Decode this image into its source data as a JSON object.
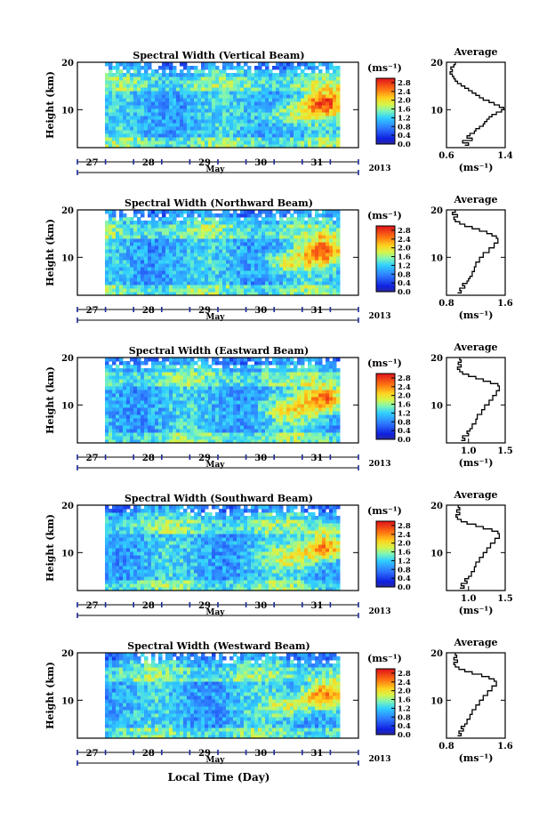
{
  "figure": {
    "xlabel_bottom": "Local Time (Day)"
  },
  "chart_data": [
    {
      "type": "heatmap",
      "title": "Spectral Width (Vertical Beam)",
      "ylabel": "Height (km)",
      "ylim": [
        2,
        20
      ],
      "yticks": [
        "10",
        "20"
      ],
      "xticks": [
        "27",
        "28",
        "29",
        "30",
        "31"
      ],
      "month_label": "May",
      "year_label": "2013",
      "colorbar": {
        "unit": "(ms⁻¹)",
        "ticks": [
          "0.0",
          "0.4",
          "0.8",
          "1.2",
          "1.6",
          "2.0",
          "2.4",
          "2.8"
        ],
        "range": [
          0.0,
          3.0
        ]
      },
      "average": {
        "title": "Average",
        "xlabel": "(ms⁻¹)",
        "xticks": [
          "0.6",
          "1.4"
        ],
        "xlim": [
          0.6,
          1.4
        ],
        "yticks": [
          "10",
          "20"
        ],
        "profile": [
          [
            0.85,
            2.5
          ],
          [
            0.9,
            3
          ],
          [
            0.82,
            3.5
          ],
          [
            0.95,
            4
          ],
          [
            0.88,
            4.5
          ],
          [
            0.92,
            5
          ],
          [
            0.98,
            5.5
          ],
          [
            1.0,
            6
          ],
          [
            1.05,
            6.5
          ],
          [
            1.1,
            7
          ],
          [
            1.12,
            7.5
          ],
          [
            1.15,
            8
          ],
          [
            1.18,
            8.5
          ],
          [
            1.22,
            9
          ],
          [
            1.28,
            9.5
          ],
          [
            1.35,
            10
          ],
          [
            1.38,
            10.5
          ],
          [
            1.32,
            11
          ],
          [
            1.25,
            11.5
          ],
          [
            1.18,
            12
          ],
          [
            1.1,
            12.5
          ],
          [
            1.05,
            13
          ],
          [
            1.0,
            13.5
          ],
          [
            0.95,
            14
          ],
          [
            0.9,
            14.5
          ],
          [
            0.85,
            15
          ],
          [
            0.8,
            15.5
          ],
          [
            0.75,
            16
          ],
          [
            0.72,
            16.5
          ],
          [
            0.7,
            17
          ],
          [
            0.68,
            17.5
          ],
          [
            0.65,
            18
          ],
          [
            0.68,
            18.5
          ],
          [
            0.66,
            19
          ],
          [
            0.7,
            19.5
          ],
          [
            0.72,
            20
          ]
        ]
      }
    },
    {
      "type": "heatmap",
      "title": "Spectral Width (Northward Beam)",
      "ylabel": "Height (km)",
      "ylim": [
        2,
        20
      ],
      "yticks": [
        "10",
        "20"
      ],
      "xticks": [
        "27",
        "28",
        "29",
        "30",
        "31"
      ],
      "month_label": "May",
      "year_label": "2013",
      "colorbar": {
        "unit": "(ms⁻¹)",
        "ticks": [
          "0.0",
          "0.4",
          "0.8",
          "1.2",
          "1.6",
          "2.0",
          "2.4",
          "2.8"
        ],
        "range": [
          0.0,
          3.0
        ]
      },
      "average": {
        "title": "Average",
        "xlabel": "(ms⁻¹)",
        "xticks": [
          "0.8",
          "1.6"
        ],
        "xlim": [
          0.8,
          1.6
        ],
        "yticks": [
          "10",
          "20"
        ],
        "profile": [
          [
            0.95,
            2.5
          ],
          [
            1.0,
            3
          ],
          [
            0.98,
            3.5
          ],
          [
            1.05,
            4
          ],
          [
            1.02,
            4.5
          ],
          [
            1.08,
            5
          ],
          [
            1.1,
            5.5
          ],
          [
            1.12,
            6
          ],
          [
            1.15,
            7
          ],
          [
            1.18,
            8
          ],
          [
            1.2,
            9
          ],
          [
            1.25,
            10
          ],
          [
            1.3,
            11
          ],
          [
            1.38,
            12
          ],
          [
            1.45,
            13
          ],
          [
            1.5,
            14
          ],
          [
            1.48,
            14.5
          ],
          [
            1.42,
            15
          ],
          [
            1.35,
            15.5
          ],
          [
            1.25,
            16
          ],
          [
            1.15,
            16.5
          ],
          [
            1.05,
            17
          ],
          [
            0.98,
            17.5
          ],
          [
            0.92,
            18
          ],
          [
            0.9,
            18.5
          ],
          [
            0.95,
            19
          ],
          [
            0.88,
            19.5
          ],
          [
            0.92,
            20
          ]
        ]
      }
    },
    {
      "type": "heatmap",
      "title": "Spectral Width (Eastward Beam)",
      "ylabel": "Height (km)",
      "ylim": [
        2,
        20
      ],
      "yticks": [
        "10",
        "20"
      ],
      "xticks": [
        "27",
        "28",
        "29",
        "30",
        "31"
      ],
      "month_label": "May",
      "year_label": "2013",
      "colorbar": {
        "unit": "(ms⁻¹)",
        "ticks": [
          "0.0",
          "0.4",
          "0.8",
          "1.2",
          "1.6",
          "2.0",
          "2.4",
          "2.8"
        ],
        "range": [
          0.0,
          3.0
        ]
      },
      "average": {
        "title": "Average",
        "xlabel": "(ms⁻¹)",
        "xticks": [
          "1.0",
          "1.5"
        ],
        "xlim": [
          0.7,
          1.5
        ],
        "yticks": [
          "10",
          "20"
        ],
        "profile": [
          [
            0.9,
            2.5
          ],
          [
            0.95,
            3
          ],
          [
            0.92,
            3.5
          ],
          [
            1.0,
            4
          ],
          [
            0.98,
            4.5
          ],
          [
            1.02,
            5
          ],
          [
            1.05,
            6
          ],
          [
            1.1,
            7
          ],
          [
            1.12,
            8
          ],
          [
            1.18,
            9
          ],
          [
            1.22,
            10
          ],
          [
            1.28,
            11
          ],
          [
            1.33,
            12
          ],
          [
            1.38,
            13
          ],
          [
            1.42,
            14
          ],
          [
            1.4,
            14.5
          ],
          [
            1.3,
            15
          ],
          [
            1.2,
            15.5
          ],
          [
            1.1,
            16
          ],
          [
            1.0,
            16.5
          ],
          [
            0.92,
            17
          ],
          [
            0.88,
            17.5
          ],
          [
            0.85,
            18
          ],
          [
            0.9,
            18.5
          ],
          [
            0.86,
            19
          ],
          [
            0.9,
            19.5
          ],
          [
            0.88,
            20
          ]
        ]
      }
    },
    {
      "type": "heatmap",
      "title": "Spectral Width (Southward Beam)",
      "ylabel": "Height (km)",
      "ylim": [
        2,
        20
      ],
      "yticks": [
        "10",
        "20"
      ],
      "xticks": [
        "27",
        "28",
        "29",
        "30",
        "31"
      ],
      "month_label": "May",
      "year_label": "2013",
      "colorbar": {
        "unit": "(ms⁻¹)",
        "ticks": [
          "0.0",
          "0.4",
          "0.8",
          "1.2",
          "1.6",
          "2.0",
          "2.4",
          "2.8"
        ],
        "range": [
          0.0,
          3.0
        ]
      },
      "average": {
        "title": "Average",
        "xlabel": "(ms⁻¹)",
        "xticks": [
          "1.0",
          "1.5"
        ],
        "xlim": [
          0.7,
          1.5
        ],
        "yticks": [
          "10",
          "20"
        ],
        "profile": [
          [
            0.88,
            2.5
          ],
          [
            0.94,
            3
          ],
          [
            0.9,
            3.5
          ],
          [
            0.98,
            4
          ],
          [
            0.95,
            4.5
          ],
          [
            1.0,
            5
          ],
          [
            1.04,
            6
          ],
          [
            1.08,
            7
          ],
          [
            1.1,
            8
          ],
          [
            1.15,
            9
          ],
          [
            1.2,
            10
          ],
          [
            1.25,
            11
          ],
          [
            1.3,
            12
          ],
          [
            1.36,
            13
          ],
          [
            1.42,
            14
          ],
          [
            1.4,
            14.5
          ],
          [
            1.32,
            15
          ],
          [
            1.2,
            15.5
          ],
          [
            1.1,
            16
          ],
          [
            0.98,
            16.5
          ],
          [
            0.9,
            17
          ],
          [
            0.85,
            17.5
          ],
          [
            0.83,
            18
          ],
          [
            0.88,
            18.5
          ],
          [
            0.84,
            19
          ],
          [
            0.88,
            19.5
          ],
          [
            0.86,
            20
          ]
        ]
      }
    },
    {
      "type": "heatmap",
      "title": "Spectral Width (Westward Beam)",
      "ylabel": "Height (km)",
      "ylim": [
        2,
        20
      ],
      "yticks": [
        "10",
        "20"
      ],
      "xticks": [
        "27",
        "28",
        "29",
        "30",
        "31"
      ],
      "month_label": "May",
      "year_label": "2013",
      "colorbar": {
        "unit": "(ms⁻¹)",
        "ticks": [
          "0.0",
          "0.4",
          "0.8",
          "1.2",
          "1.6",
          "2.0",
          "2.4",
          "2.8"
        ],
        "range": [
          0.0,
          3.0
        ]
      },
      "average": {
        "title": "Average",
        "xlabel": "(ms⁻¹)",
        "xticks": [
          "0.8",
          "1.6"
        ],
        "xlim": [
          0.8,
          1.6
        ],
        "yticks": [
          "10",
          "20"
        ],
        "profile": [
          [
            0.95,
            2.5
          ],
          [
            1.0,
            3
          ],
          [
            0.97,
            3.5
          ],
          [
            1.03,
            4
          ],
          [
            1.0,
            4.5
          ],
          [
            1.05,
            5
          ],
          [
            1.08,
            6
          ],
          [
            1.12,
            7
          ],
          [
            1.15,
            8
          ],
          [
            1.2,
            9
          ],
          [
            1.25,
            10
          ],
          [
            1.3,
            11
          ],
          [
            1.36,
            12
          ],
          [
            1.42,
            13
          ],
          [
            1.48,
            14
          ],
          [
            1.45,
            14.5
          ],
          [
            1.38,
            15
          ],
          [
            1.28,
            15.5
          ],
          [
            1.15,
            16
          ],
          [
            1.05,
            16.5
          ],
          [
            0.97,
            17
          ],
          [
            0.92,
            17.5
          ],
          [
            0.9,
            18
          ],
          [
            0.95,
            18.5
          ],
          [
            0.9,
            19
          ],
          [
            0.94,
            19.5
          ],
          [
            0.92,
            20
          ]
        ]
      }
    }
  ]
}
